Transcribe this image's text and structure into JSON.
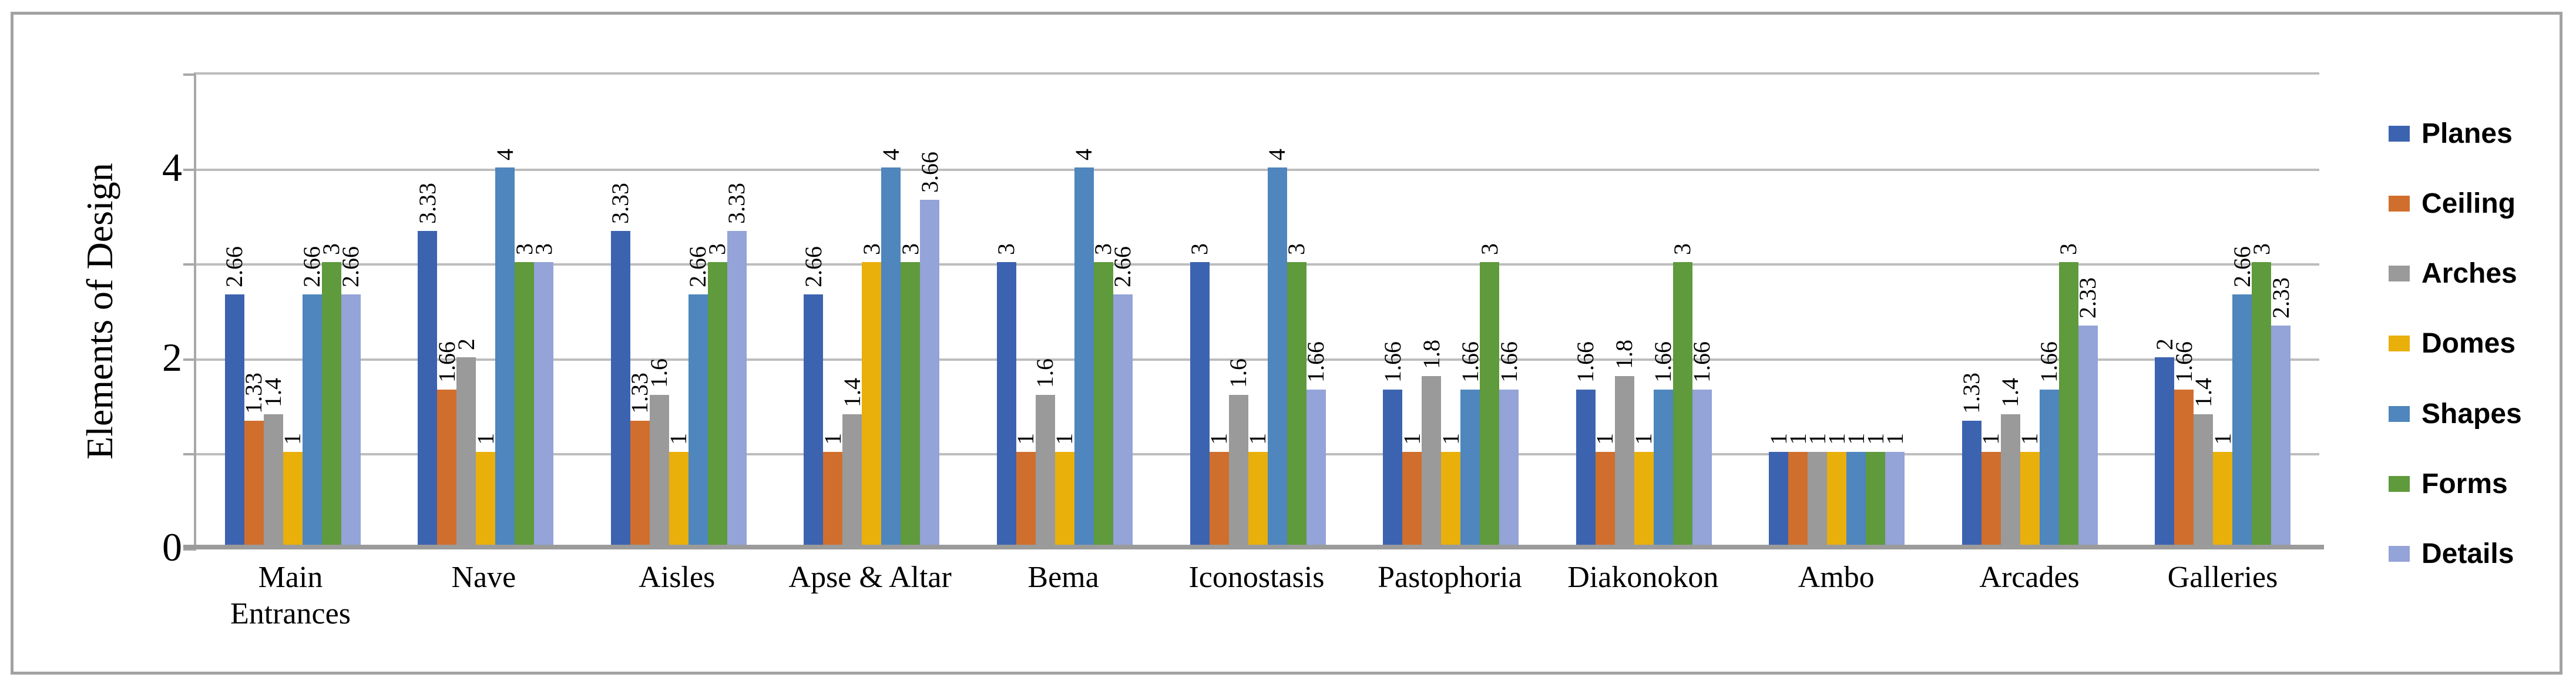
{
  "chart_data": {
    "type": "bar",
    "title": "",
    "ylabel": "Elements of Design",
    "xlabel": "",
    "categories": [
      "Main Entrances",
      "Nave",
      "Aisles",
      "Apse & Altar",
      "Bema",
      "Iconostasis",
      "Pastophoria",
      "Diakonokon",
      "Ambo",
      "Arcades",
      "Galleries"
    ],
    "series": [
      {
        "name": "Planes",
        "color": "#3c63b0",
        "values": [
          2.66,
          3.33,
          3.33,
          2.66,
          3,
          3,
          1.66,
          1.66,
          1,
          1.33,
          2
        ]
      },
      {
        "name": "Ceiling",
        "color": "#d06f2d",
        "values": [
          1.33,
          1.66,
          1.33,
          1,
          1,
          1,
          1,
          1,
          1,
          1,
          1.66
        ]
      },
      {
        "name": "Arches",
        "color": "#9a9a9a",
        "values": [
          1.4,
          2,
          1.6,
          1.4,
          1.6,
          1.6,
          1.8,
          1.8,
          1,
          1.4,
          1.4
        ]
      },
      {
        "name": "Domes",
        "color": "#e9af0b",
        "values": [
          1,
          1,
          1,
          3,
          1,
          1,
          1,
          1,
          1,
          1,
          1
        ]
      },
      {
        "name": "Shapes",
        "color": "#4e86bd",
        "values": [
          2.66,
          4,
          2.66,
          4,
          4,
          4,
          1.66,
          1.66,
          1,
          1.66,
          2.66
        ]
      },
      {
        "name": "Forms",
        "color": "#5f9a3c",
        "values": [
          3,
          3,
          3,
          3,
          3,
          3,
          3,
          3,
          1,
          3,
          3
        ]
      },
      {
        "name": "Details",
        "color": "#94a3d8",
        "values": [
          2.66,
          3,
          3.33,
          3.66,
          2.66,
          1.66,
          1.66,
          1.66,
          1,
          2.33,
          2.33
        ]
      }
    ],
    "y_ticks": [
      0,
      2,
      4
    ],
    "ylim": [
      0,
      5
    ],
    "gridline_values": [
      1,
      2,
      3,
      4,
      5
    ],
    "grid": true,
    "legend_position": "right",
    "data_labels": "rotated-vertical"
  },
  "colors": {
    "gridline": "#bdbdbd",
    "axis_line": "#9b9b9b",
    "frame_border": "#a2a2a2",
    "background": "#ffffff",
    "label_text": "#000000"
  }
}
